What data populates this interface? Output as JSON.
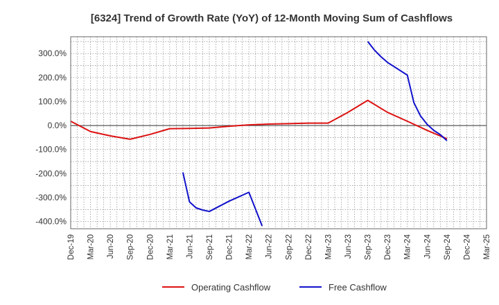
{
  "chart_data": {
    "type": "line",
    "title": "[6324]  Trend of Growth Rate (YoY) of 12-Month Moving Sum of Cashflows",
    "xlabel": "",
    "ylabel": "",
    "x_ticks": [
      "Dec-19",
      "Mar-20",
      "Jun-20",
      "Sep-20",
      "Dec-20",
      "Mar-21",
      "Jun-21",
      "Sep-21",
      "Dec-21",
      "Mar-22",
      "Jun-22",
      "Sep-22",
      "Dec-22",
      "Mar-23",
      "Jun-23",
      "Sep-23",
      "Dec-23",
      "Mar-24",
      "Jun-24",
      "Sep-24",
      "Dec-24",
      "Mar-25"
    ],
    "y_ticks": [
      "300.0%",
      "200.0%",
      "100.0%",
      "0.0%",
      "-100.0%",
      "-200.0%",
      "-300.0%",
      "-400.0%"
    ],
    "ylim": [
      -430,
      370
    ],
    "grid": true,
    "legend_position": "bottom",
    "series": [
      {
        "name": "Operating Cashflow",
        "color": "#dd1111",
        "points": [
          [
            "Dec-19",
            18
          ],
          [
            "Mar-20",
            -25
          ],
          [
            "Jun-20",
            -43
          ],
          [
            "Sep-20",
            -57
          ],
          [
            "Dec-20",
            -37
          ],
          [
            "Mar-21",
            -13
          ],
          [
            "Jun-21",
            -12
          ],
          [
            "Sep-21",
            -10
          ],
          [
            "Dec-21",
            -3
          ],
          [
            "Mar-22",
            3
          ],
          [
            "Jun-22",
            6
          ],
          [
            "Sep-22",
            8
          ],
          [
            "Dec-22",
            10
          ],
          [
            "Mar-23",
            10
          ],
          [
            "Jun-23",
            55
          ],
          [
            "Sep-23",
            105
          ],
          [
            "Dec-23",
            55
          ],
          [
            "Mar-24",
            18
          ],
          [
            "Jun-24",
            -20
          ],
          [
            "Sep-24",
            -55
          ]
        ]
      },
      {
        "name": "Free Cashflow",
        "color": "#1111cc",
        "segments": [
          [
            [
              "May-21",
              -195
            ],
            [
              "Jun-21",
              -318
            ],
            [
              "Jul-21",
              -343
            ],
            [
              "Aug-21",
              -352
            ],
            [
              "Sep-21",
              -358
            ],
            [
              "Dec-21",
              -315
            ],
            [
              "Mar-22",
              -278
            ],
            [
              "May-22",
              -418
            ]
          ],
          [
            [
              "Sep-23",
              350
            ],
            [
              "Oct-23",
              315
            ],
            [
              "Nov-23",
              287
            ],
            [
              "Dec-23",
              263
            ],
            [
              "Mar-24",
              210
            ],
            [
              "Apr-24",
              95
            ],
            [
              "May-24",
              40
            ],
            [
              "Jun-24",
              5
            ],
            [
              "Jul-24",
              -20
            ],
            [
              "Aug-24",
              -38
            ],
            [
              "Sep-24",
              -63
            ]
          ]
        ]
      }
    ]
  }
}
